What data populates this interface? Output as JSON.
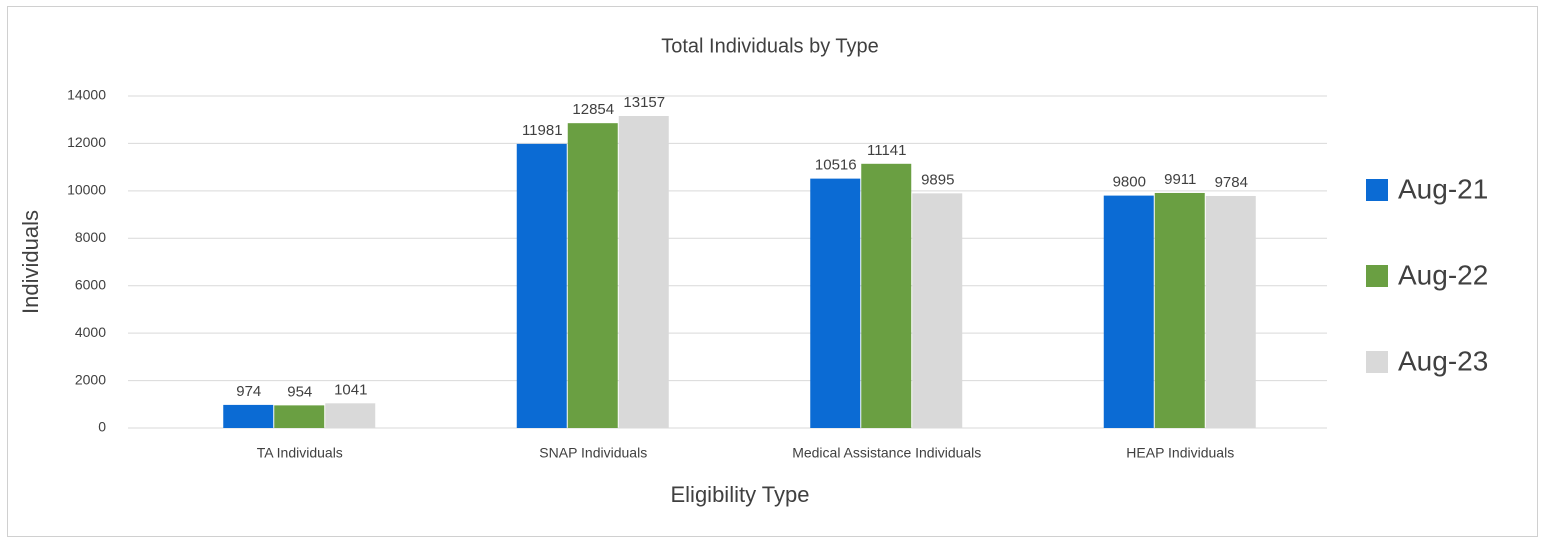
{
  "chart_data": {
    "type": "bar",
    "title": "Total Individuals by Type",
    "x_label": "Eligibility Type",
    "y_label": "Individuals",
    "categories": [
      "TA Individuals",
      "SNAP Individuals",
      "Medical Assistance Individuals",
      "HEAP Individuals"
    ],
    "series": [
      {
        "name": "Aug-21",
        "color": "#0b6bd4",
        "values": [
          974,
          11981,
          10516,
          9800
        ]
      },
      {
        "name": "Aug-22",
        "color": "#6a9f42",
        "values": [
          954,
          12854,
          11141,
          9911
        ]
      },
      {
        "name": "Aug-23",
        "color": "#d9d9d9",
        "values": [
          1041,
          13157,
          9895,
          9784
        ]
      }
    ],
    "ylim": [
      0,
      14000
    ],
    "yticks": [
      0,
      2000,
      4000,
      6000,
      8000,
      10000,
      12000,
      14000
    ],
    "grid": true,
    "legend": "right"
  }
}
